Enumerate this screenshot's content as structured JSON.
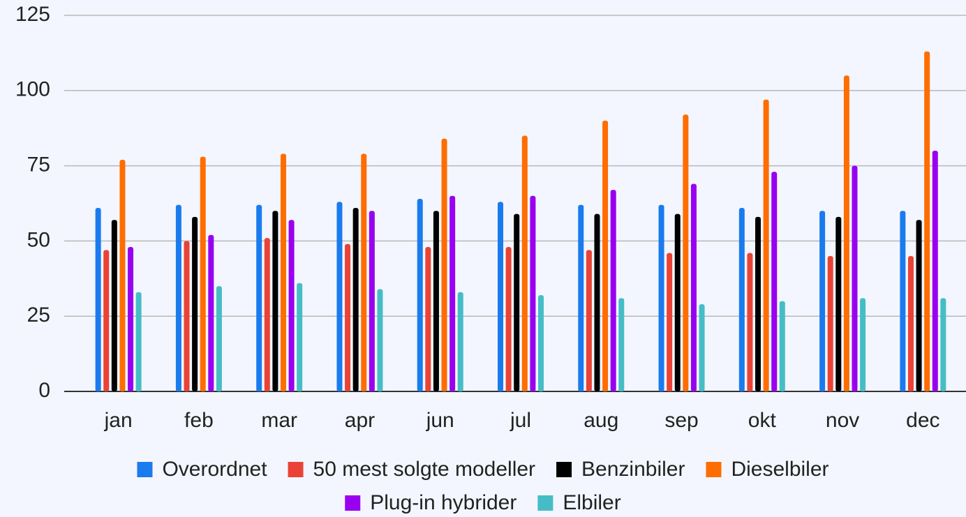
{
  "chart_data": {
    "type": "bar",
    "categories": [
      "jan",
      "feb",
      "mar",
      "apr",
      "jun",
      "jul",
      "aug",
      "sep",
      "okt",
      "nov",
      "dec"
    ],
    "series": [
      {
        "name": "Overordnet",
        "color": "#1a7bef",
        "values": [
          61,
          62,
          62,
          63,
          64,
          63,
          62,
          62,
          61,
          60,
          60
        ]
      },
      {
        "name": "50 mest solgte modeller",
        "color": "#ea4335",
        "values": [
          47,
          50,
          51,
          49,
          48,
          48,
          47,
          46,
          46,
          45,
          45
        ]
      },
      {
        "name": "Benzinbiler",
        "color": "#000000",
        "values": [
          57,
          58,
          60,
          61,
          60,
          59,
          59,
          59,
          58,
          58,
          57
        ]
      },
      {
        "name": "Dieselbiler",
        "color": "#ff6d01",
        "values": [
          77,
          78,
          79,
          79,
          84,
          85,
          90,
          92,
          97,
          105,
          113
        ]
      },
      {
        "name": "Plug-in hybrider",
        "color": "#9900ef",
        "values": [
          48,
          52,
          57,
          60,
          65,
          65,
          67,
          69,
          73,
          75,
          80
        ]
      },
      {
        "name": "Elbiler",
        "color": "#46bdc6",
        "values": [
          33,
          35,
          36,
          34,
          33,
          32,
          31,
          29,
          30,
          31,
          31
        ]
      }
    ],
    "ylim": [
      0,
      125
    ],
    "yticks": [
      0,
      25,
      50,
      75,
      100,
      125
    ],
    "grid": true,
    "legend": "bottom"
  }
}
